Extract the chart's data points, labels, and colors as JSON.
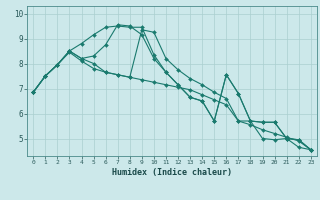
{
  "xlabel": "Humidex (Indice chaleur)",
  "xlim": [
    -0.5,
    23.5
  ],
  "ylim": [
    4.3,
    10.3
  ],
  "xticks": [
    0,
    1,
    2,
    3,
    4,
    5,
    6,
    7,
    8,
    9,
    10,
    11,
    12,
    13,
    14,
    15,
    16,
    17,
    18,
    19,
    20,
    21,
    22,
    23
  ],
  "yticks": [
    5,
    6,
    7,
    8,
    9,
    10
  ],
  "bg_color": "#cce8ea",
  "line_color": "#1a7a6e",
  "grid_color": "#aacfcf",
  "series": [
    [
      6.85,
      7.5,
      7.95,
      8.5,
      8.2,
      8.0,
      7.65,
      7.55,
      7.45,
      7.35,
      7.25,
      7.15,
      7.05,
      6.95,
      6.75,
      6.55,
      6.35,
      5.7,
      5.55,
      5.35,
      5.2,
      5.05,
      4.9,
      4.55
    ],
    [
      6.85,
      7.5,
      7.95,
      8.45,
      8.1,
      7.8,
      7.65,
      7.55,
      7.45,
      9.35,
      9.25,
      8.2,
      7.75,
      7.4,
      7.15,
      6.85,
      6.6,
      5.7,
      5.7,
      5.0,
      4.95,
      5.0,
      4.65,
      4.55
    ],
    [
      6.85,
      7.5,
      7.95,
      8.5,
      8.2,
      8.3,
      8.75,
      9.55,
      9.5,
      9.15,
      8.2,
      7.65,
      7.15,
      6.65,
      6.5,
      5.7,
      7.55,
      6.8,
      5.7,
      5.65,
      5.65,
      5.0,
      4.95,
      4.55
    ],
    [
      6.85,
      7.5,
      7.95,
      8.5,
      8.8,
      9.15,
      9.45,
      9.5,
      9.45,
      9.45,
      8.35,
      7.65,
      7.15,
      6.65,
      6.5,
      5.7,
      7.55,
      6.8,
      5.7,
      5.65,
      5.65,
      5.0,
      4.95,
      4.55
    ]
  ]
}
